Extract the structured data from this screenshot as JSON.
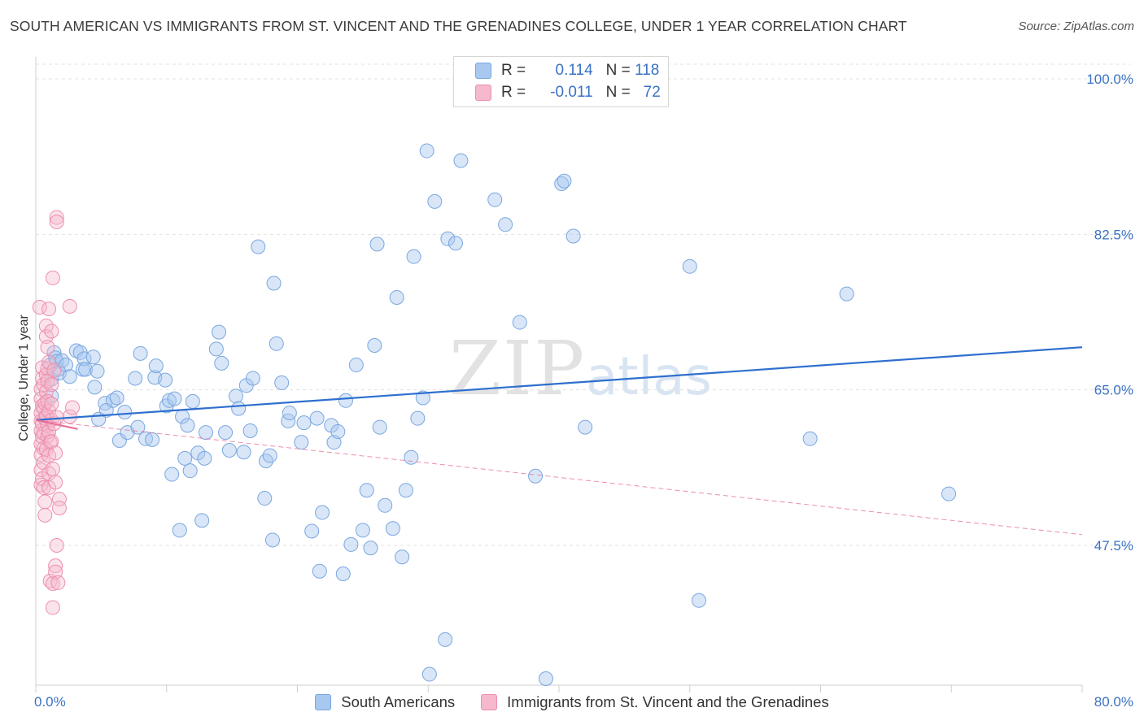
{
  "title": "SOUTH AMERICAN VS IMMIGRANTS FROM ST. VINCENT AND THE GRENADINES COLLEGE, UNDER 1 YEAR CORRELATION CHART",
  "source": "Source: ZipAtlas.com",
  "watermark": {
    "zip": "ZIP",
    "atlas": "atlas"
  },
  "legend": {
    "r_label": "R =",
    "n_label": "N =",
    "rows": [
      {
        "r": "0.114",
        "n": "118",
        "color": "#a8c8f0"
      },
      {
        "r": "-0.011",
        "n": "72",
        "color": "#f5b8cc"
      }
    ]
  },
  "colors": {
    "blue_fill": "#a8c8f0",
    "blue_stroke": "#7aa7df",
    "blue_line": "#2e6fce",
    "pink_fill": "#f5b8cc",
    "pink_stroke": "#ec8fae",
    "pink_line": "#e8709a",
    "axis_label": "#3a72c4",
    "grid": "#e2e2e2"
  },
  "chart_data": {
    "type": "scatter",
    "title": "SOUTH AMERICAN VS IMMIGRANTS FROM ST. VINCENT AND THE GRENADINES COLLEGE, UNDER 1 YEAR CORRELATION CHART",
    "xlabel": "",
    "ylabel": "College, Under 1 year",
    "xlim": [
      0,
      80
    ],
    "ylim": [
      29.5,
      102
    ],
    "x_tick_labels": [
      "0.0%",
      "80.0%"
    ],
    "y_ticks": [
      47.5,
      65.0,
      82.5,
      100.0
    ],
    "y_tick_labels": [
      "47.5%",
      "65.0%",
      "82.5%",
      "100.0%"
    ],
    "grid": true,
    "legend_position": "top-center",
    "series": [
      {
        "name": "South Americans",
        "r": 0.114,
        "n": 118,
        "trend": {
          "x": [
            0,
            80
          ],
          "y": [
            61.6,
            69.8
          ]
        },
        "points": [
          [
            1.1,
            67.8
          ],
          [
            1.2,
            66.2
          ],
          [
            1.2,
            64.3
          ],
          [
            1.4,
            69.2
          ],
          [
            1.5,
            68.6
          ],
          [
            1.6,
            68.2
          ],
          [
            1.7,
            67.3
          ],
          [
            1.8,
            66.9
          ],
          [
            2.0,
            68.3
          ],
          [
            2.3,
            67.8
          ],
          [
            2.6,
            66.5
          ],
          [
            3.1,
            69.4
          ],
          [
            3.4,
            69.2
          ],
          [
            3.6,
            67.3
          ],
          [
            3.7,
            68.5
          ],
          [
            3.8,
            67.3
          ],
          [
            4.4,
            68.7
          ],
          [
            4.5,
            65.3
          ],
          [
            4.7,
            67.1
          ],
          [
            4.8,
            61.7
          ],
          [
            5.3,
            63.5
          ],
          [
            5.4,
            62.7
          ],
          [
            5.9,
            63.8
          ],
          [
            6.2,
            64.1
          ],
          [
            6.4,
            59.3
          ],
          [
            6.8,
            62.5
          ],
          [
            7.0,
            60.2
          ],
          [
            7.6,
            66.3
          ],
          [
            7.8,
            60.8
          ],
          [
            8.0,
            69.1
          ],
          [
            8.4,
            59.5
          ],
          [
            8.9,
            59.4
          ],
          [
            9.1,
            66.4
          ],
          [
            9.2,
            67.7
          ],
          [
            9.9,
            66.1
          ],
          [
            10.0,
            63.2
          ],
          [
            10.2,
            63.8
          ],
          [
            10.4,
            55.5
          ],
          [
            10.6,
            64.0
          ],
          [
            11.0,
            49.2
          ],
          [
            11.2,
            62.0
          ],
          [
            11.4,
            57.3
          ],
          [
            11.6,
            61.0
          ],
          [
            11.8,
            55.9
          ],
          [
            12.0,
            63.7
          ],
          [
            12.4,
            57.9
          ],
          [
            12.7,
            50.3
          ],
          [
            12.9,
            57.3
          ],
          [
            13.0,
            60.2
          ],
          [
            13.8,
            69.6
          ],
          [
            14.0,
            71.5
          ],
          [
            14.2,
            68.0
          ],
          [
            14.5,
            60.2
          ],
          [
            14.8,
            58.2
          ],
          [
            15.3,
            64.3
          ],
          [
            15.5,
            62.9
          ],
          [
            15.9,
            58.0
          ],
          [
            16.1,
            65.5
          ],
          [
            16.4,
            60.4
          ],
          [
            16.6,
            66.3
          ],
          [
            17.0,
            81.1
          ],
          [
            17.5,
            52.8
          ],
          [
            17.6,
            57.0
          ],
          [
            17.9,
            57.6
          ],
          [
            18.1,
            48.1
          ],
          [
            18.2,
            77.0
          ],
          [
            18.4,
            70.2
          ],
          [
            18.8,
            65.8
          ],
          [
            19.3,
            61.5
          ],
          [
            19.4,
            62.4
          ],
          [
            20.3,
            59.1
          ],
          [
            20.5,
            61.3
          ],
          [
            21.1,
            49.1
          ],
          [
            21.5,
            61.8
          ],
          [
            21.7,
            44.6
          ],
          [
            21.9,
            51.2
          ],
          [
            22.6,
            61.0
          ],
          [
            22.8,
            59.1
          ],
          [
            23.1,
            60.3
          ],
          [
            23.5,
            44.3
          ],
          [
            23.7,
            63.8
          ],
          [
            24.1,
            47.6
          ],
          [
            24.5,
            67.8
          ],
          [
            25.0,
            49.2
          ],
          [
            25.3,
            53.7
          ],
          [
            25.6,
            47.2
          ],
          [
            25.9,
            70.0
          ],
          [
            26.1,
            81.4
          ],
          [
            26.3,
            60.8
          ],
          [
            26.7,
            52.0
          ],
          [
            27.3,
            49.4
          ],
          [
            27.6,
            75.4
          ],
          [
            28.0,
            46.2
          ],
          [
            28.3,
            53.7
          ],
          [
            28.7,
            57.4
          ],
          [
            28.9,
            80.0
          ],
          [
            29.2,
            61.8
          ],
          [
            29.6,
            64.1
          ],
          [
            29.9,
            91.9
          ],
          [
            30.1,
            33.0
          ],
          [
            30.5,
            86.2
          ],
          [
            31.3,
            36.9
          ],
          [
            31.5,
            82.0
          ],
          [
            32.1,
            81.5
          ],
          [
            32.5,
            90.8
          ],
          [
            35.1,
            86.4
          ],
          [
            35.9,
            83.6
          ],
          [
            37.0,
            72.6
          ],
          [
            38.2,
            55.3
          ],
          [
            39.0,
            32.5
          ],
          [
            40.2,
            88.2
          ],
          [
            40.4,
            88.5
          ],
          [
            41.1,
            82.3
          ],
          [
            42.0,
            60.8
          ],
          [
            50.0,
            78.9
          ],
          [
            50.7,
            41.3
          ],
          [
            59.2,
            59.5
          ],
          [
            62.0,
            75.8
          ],
          [
            69.8,
            53.3
          ]
        ]
      },
      {
        "name": "Immigrants from St. Vincent and the Grenadines",
        "r": -0.011,
        "n": 72,
        "trend": {
          "x": [
            0,
            3.2
          ],
          "y": [
            61.6,
            60.6
          ]
        },
        "trend_dashed": {
          "x": [
            0,
            80
          ],
          "y": [
            61.6,
            48.7
          ]
        },
        "points": [
          [
            0.3,
            74.3
          ],
          [
            0.4,
            65.1
          ],
          [
            0.4,
            64.0
          ],
          [
            0.4,
            62.4
          ],
          [
            0.4,
            61.5
          ],
          [
            0.4,
            60.4
          ],
          [
            0.4,
            58.9
          ],
          [
            0.4,
            57.7
          ],
          [
            0.4,
            56.0
          ],
          [
            0.4,
            54.3
          ],
          [
            0.5,
            67.5
          ],
          [
            0.5,
            66.3
          ],
          [
            0.5,
            63.2
          ],
          [
            0.5,
            61.2
          ],
          [
            0.5,
            59.7
          ],
          [
            0.5,
            55.0
          ],
          [
            0.6,
            65.6
          ],
          [
            0.6,
            62.9
          ],
          [
            0.6,
            60.1
          ],
          [
            0.6,
            58.4
          ],
          [
            0.6,
            56.8
          ],
          [
            0.6,
            54.0
          ],
          [
            0.7,
            52.4
          ],
          [
            0.7,
            50.9
          ],
          [
            0.7,
            61.8
          ],
          [
            0.7,
            63.5
          ],
          [
            0.8,
            72.2
          ],
          [
            0.8,
            71.0
          ],
          [
            0.8,
            66.7
          ],
          [
            0.8,
            64.8
          ],
          [
            0.8,
            62.1
          ],
          [
            0.8,
            58.3
          ],
          [
            0.9,
            69.8
          ],
          [
            0.9,
            67.4
          ],
          [
            0.9,
            66.0
          ],
          [
            0.9,
            63.7
          ],
          [
            0.9,
            61.0
          ],
          [
            0.9,
            59.8
          ],
          [
            1.0,
            74.1
          ],
          [
            1.0,
            68.1
          ],
          [
            1.0,
            62.6
          ],
          [
            1.0,
            60.3
          ],
          [
            1.0,
            57.6
          ],
          [
            1.0,
            55.6
          ],
          [
            1.0,
            54.0
          ],
          [
            1.1,
            59.1
          ],
          [
            1.1,
            43.5
          ],
          [
            1.2,
            71.6
          ],
          [
            1.2,
            65.6
          ],
          [
            1.2,
            63.4
          ],
          [
            1.2,
            61.6
          ],
          [
            1.2,
            59.2
          ],
          [
            1.3,
            56.1
          ],
          [
            1.3,
            43.2
          ],
          [
            1.3,
            40.5
          ],
          [
            1.3,
            77.6
          ],
          [
            1.4,
            67.2
          ],
          [
            1.4,
            61.2
          ],
          [
            1.5,
            54.6
          ],
          [
            1.5,
            57.9
          ],
          [
            1.5,
            45.2
          ],
          [
            1.5,
            44.5
          ],
          [
            1.6,
            84.4
          ],
          [
            1.6,
            83.9
          ],
          [
            1.6,
            47.5
          ],
          [
            1.6,
            61.9
          ],
          [
            1.7,
            43.3
          ],
          [
            1.8,
            52.7
          ],
          [
            1.8,
            51.7
          ],
          [
            2.6,
            74.4
          ],
          [
            2.6,
            62.0
          ],
          [
            2.8,
            63.0
          ]
        ]
      }
    ]
  }
}
